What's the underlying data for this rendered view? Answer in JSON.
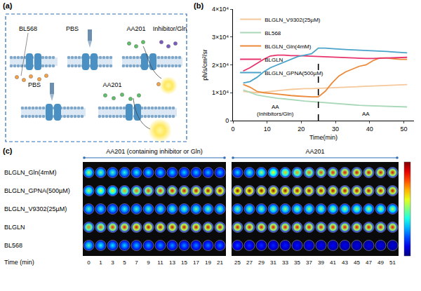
{
  "panel_labels": [
    "(a)",
    "(b)",
    "(c)"
  ],
  "panel_a": {
    "top_row": [
      "BL568",
      "PBS",
      "AA201",
      "Inhibitor/Gln"
    ],
    "bottom_row": [
      "PBS",
      "AA201"
    ]
  },
  "chart_data": {
    "type": "line",
    "x_title": "Time(min)",
    "y_title": "ph/s/cm²/sr",
    "x": [
      3,
      5,
      7,
      9,
      11,
      13,
      15,
      17,
      19,
      21,
      23,
      25,
      27,
      29,
      31,
      33,
      35,
      37,
      39,
      41,
      43,
      45,
      47,
      49,
      51
    ],
    "series": [
      {
        "name": "BLGLN_V9302(25µM)",
        "color": "#f5c89a",
        "values": [
          10500,
          10200,
          10000,
          10200,
          10500,
          10800,
          11000,
          11200,
          11400,
          11500,
          11500,
          11600,
          11700,
          11800,
          11900,
          12000,
          12100,
          12200,
          12300,
          12500,
          12500,
          12600,
          12700,
          12800,
          12900
        ]
      },
      {
        "name": "BL568",
        "color": "#a9d8b8",
        "values": [
          11000,
          10000,
          9200,
          8800,
          8400,
          8000,
          7800,
          7500,
          7200,
          7000,
          6800,
          6600,
          6400,
          6200,
          6000,
          5800,
          5600,
          5500,
          5400,
          5300,
          5200,
          5100,
          5000,
          4900,
          4900
        ]
      },
      {
        "name": "BLGLN_Gln(4mM)",
        "color": "#ec8a3c",
        "values": [
          13000,
          12000,
          10500,
          10000,
          9800,
          9500,
          9200,
          9000,
          8800,
          8600,
          8500,
          8500,
          10500,
          13500,
          16000,
          17500,
          18500,
          19500,
          20000,
          21500,
          22500,
          22500,
          22200,
          22000,
          22000
        ]
      },
      {
        "name": "BLGLN",
        "color": "#e8336d",
        "values": [
          17800,
          19000,
          20500,
          22000,
          23200,
          23500,
          23500,
          23300,
          23300,
          23200,
          23000,
          23000,
          22800,
          22700,
          22600,
          22500,
          22400,
          22400,
          22300,
          22300,
          22400,
          22500,
          22600,
          22600,
          22700
        ]
      },
      {
        "name": "BLGLN_GPNA(500µM)",
        "color": "#4aa3c8",
        "values": [
          13500,
          14000,
          15500,
          17500,
          19000,
          20000,
          21000,
          22000,
          23000,
          23500,
          24000,
          26000,
          26000,
          25800,
          25600,
          25500,
          25400,
          25300,
          25200,
          25000,
          24900,
          24800,
          24600,
          24500,
          24300
        ]
      }
    ],
    "xlim": [
      0,
      53
    ],
    "xticks": [
      0,
      10,
      20,
      30,
      40,
      50
    ],
    "ylim": [
      0,
      40000
    ],
    "yticks": [
      0,
      {
        "value": 10000,
        "label": "1×10⁴"
      },
      {
        "value": 20000,
        "label": "2×10⁴"
      },
      {
        "value": 30000,
        "label": "3×10⁴"
      },
      {
        "value": 40000,
        "label": "4×10⁴"
      }
    ],
    "grid": false,
    "legend": "top",
    "divider": {
      "x": 25,
      "left_text": "AA\n(Inhibitors/Gln)",
      "right_text": "AA"
    }
  },
  "panel_c": {
    "time_label": "Time (min)",
    "color_range": [
      0,
      1
    ],
    "groups": [
      {
        "title": "AA201 (containing inhibitor or Gln)",
        "times": [
          0,
          1,
          3,
          5,
          7,
          9,
          11,
          13,
          15,
          17,
          19,
          21
        ]
      },
      {
        "title": "AA201",
        "times": [
          25,
          27,
          29,
          31,
          33,
          35,
          37,
          39,
          41,
          43,
          45,
          47,
          49,
          51
        ]
      }
    ],
    "rows": [
      {
        "label": "BLGLN_Gln(4mM)",
        "cells": [
          [
            0.55,
            0.5,
            0.45,
            0.42,
            0.4,
            0.38,
            0.36,
            0.35,
            0.34,
            0.33,
            0.32,
            0.32
          ],
          [
            0.35,
            0.45,
            0.55,
            0.62,
            0.68,
            0.72,
            0.78,
            0.82,
            0.85,
            0.88,
            0.9,
            0.9,
            0.9,
            0.9
          ]
        ]
      },
      {
        "label": "BLGLN_GPNA(500µM)",
        "cells": [
          [
            0.55,
            0.6,
            0.65,
            0.72,
            0.78,
            0.82,
            0.85,
            0.88,
            0.9,
            0.92,
            0.95,
            0.97
          ],
          [
            1.0,
            1.0,
            0.98,
            0.98,
            0.97,
            0.96,
            0.96,
            0.95,
            0.95,
            0.94,
            0.94,
            0.93,
            0.93,
            0.92
          ]
        ]
      },
      {
        "label": "BLGLN_V9302(25µM)",
        "cells": [
          [
            0.45,
            0.42,
            0.4,
            0.42,
            0.44,
            0.45,
            0.46,
            0.47,
            0.48,
            0.48,
            0.49,
            0.49
          ],
          [
            0.5,
            0.5,
            0.51,
            0.52,
            0.52,
            0.53,
            0.53,
            0.54,
            0.54,
            0.55,
            0.55,
            0.56,
            0.56,
            0.57
          ]
        ]
      },
      {
        "label": "BLGLN",
        "cells": [
          [
            0.75,
            0.8,
            0.85,
            0.88,
            0.92,
            0.93,
            0.93,
            0.92,
            0.92,
            0.92,
            0.91,
            0.91
          ],
          [
            0.9,
            0.9,
            0.89,
            0.89,
            0.88,
            0.88,
            0.88,
            0.87,
            0.87,
            0.87,
            0.88,
            0.88,
            0.88,
            0.88
          ]
        ]
      },
      {
        "label": "BL568",
        "cells": [
          [
            0.45,
            0.4,
            0.36,
            0.34,
            0.32,
            0.3,
            0.29,
            0.28,
            0.27,
            0.26,
            0.25,
            0.25
          ],
          [
            0.2,
            0.18,
            0.17,
            0.16,
            0.15,
            0.14,
            0.13,
            0.12,
            0.12,
            0.11,
            0.1,
            0.1,
            0.1,
            0.09
          ]
        ]
      }
    ]
  }
}
